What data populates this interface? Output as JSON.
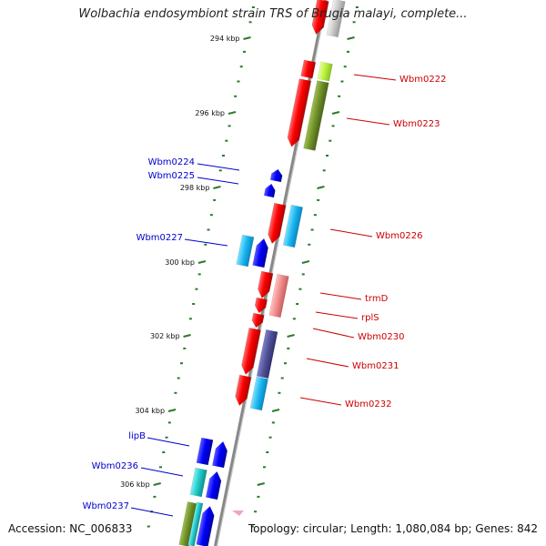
{
  "title": "Wolbachia endosymbiont strain TRS of Brugia malayi, complete...",
  "footer": {
    "accession": "Accession: NC_006833",
    "summary": "Topology: circular; Length: 1,080,084 bp; Genes: 842"
  },
  "ticks": [
    "294 kbp",
    "296 kbp",
    "298 kbp",
    "300 kbp",
    "302 kbp",
    "304 kbp",
    "306 kbp"
  ],
  "colors": {
    "forward_strand_label": "#cc0000",
    "reverse_strand_label": "#0000cc",
    "backbone": "#888888",
    "tick": "#2a7a2a"
  },
  "genes": [
    {
      "label": "Wbm0222",
      "strand": "forward"
    },
    {
      "label": "Wbm0223",
      "strand": "forward"
    },
    {
      "label": "Wbm0224",
      "strand": "reverse"
    },
    {
      "label": "Wbm0225",
      "strand": "reverse"
    },
    {
      "label": "Wbm0226",
      "strand": "forward"
    },
    {
      "label": "Wbm0227",
      "strand": "reverse"
    },
    {
      "label": "trmD",
      "strand": "forward"
    },
    {
      "label": "rplS",
      "strand": "forward"
    },
    {
      "label": "Wbm0230",
      "strand": "forward"
    },
    {
      "label": "Wbm0231",
      "strand": "forward"
    },
    {
      "label": "Wbm0232",
      "strand": "forward"
    },
    {
      "label": "lipB",
      "strand": "reverse"
    },
    {
      "label": "Wbm0236",
      "strand": "reverse"
    },
    {
      "label": "Wbm0237",
      "strand": "reverse"
    }
  ]
}
